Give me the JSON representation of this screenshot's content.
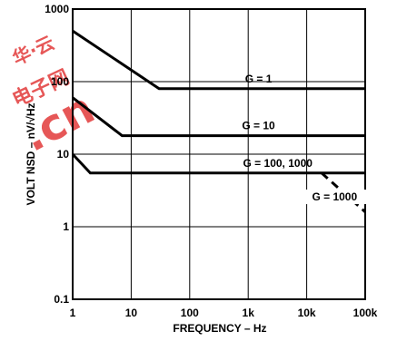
{
  "chart_data": {
    "type": "line",
    "xscale": "log",
    "yscale": "log",
    "xlim": [
      1,
      100000
    ],
    "ylim": [
      0.1,
      1000
    ],
    "xlabel": "FREQUENCY – Hz",
    "ylabel": "VOLT NSD – nV/√Hz",
    "x_ticks": [
      "1",
      "10",
      "100",
      "1k",
      "10k",
      "100k"
    ],
    "y_ticks": [
      "0.1",
      "1",
      "10",
      "100",
      "1000"
    ],
    "grid": true,
    "series": [
      {
        "name": "G = 1",
        "style": "solid",
        "x": [
          1,
          30,
          100000
        ],
        "y": [
          500,
          80,
          80
        ]
      },
      {
        "name": "G = 10",
        "style": "solid",
        "x": [
          1,
          7,
          100000
        ],
        "y": [
          60,
          18,
          18
        ]
      },
      {
        "name": "G = 100, 1000",
        "style": "solid",
        "x": [
          1,
          2,
          100000
        ],
        "y": [
          10,
          5.5,
          5.5
        ]
      },
      {
        "name": "G = 1000",
        "style": "dashed",
        "x": [
          18000,
          100000
        ],
        "y": [
          5.5,
          1.6
        ]
      }
    ],
    "annotations": [
      {
        "text": "G = 1",
        "series": 0
      },
      {
        "text": "G = 10",
        "series": 1
      },
      {
        "text": "G = 100, 1000",
        "series": 2
      },
      {
        "text": "G = 1000",
        "series": 3
      }
    ]
  },
  "watermark": {
    "text_cn": "华·云",
    "text_cn2": "电子网",
    "text_en": ".cn",
    "color": "#e23a3a"
  }
}
